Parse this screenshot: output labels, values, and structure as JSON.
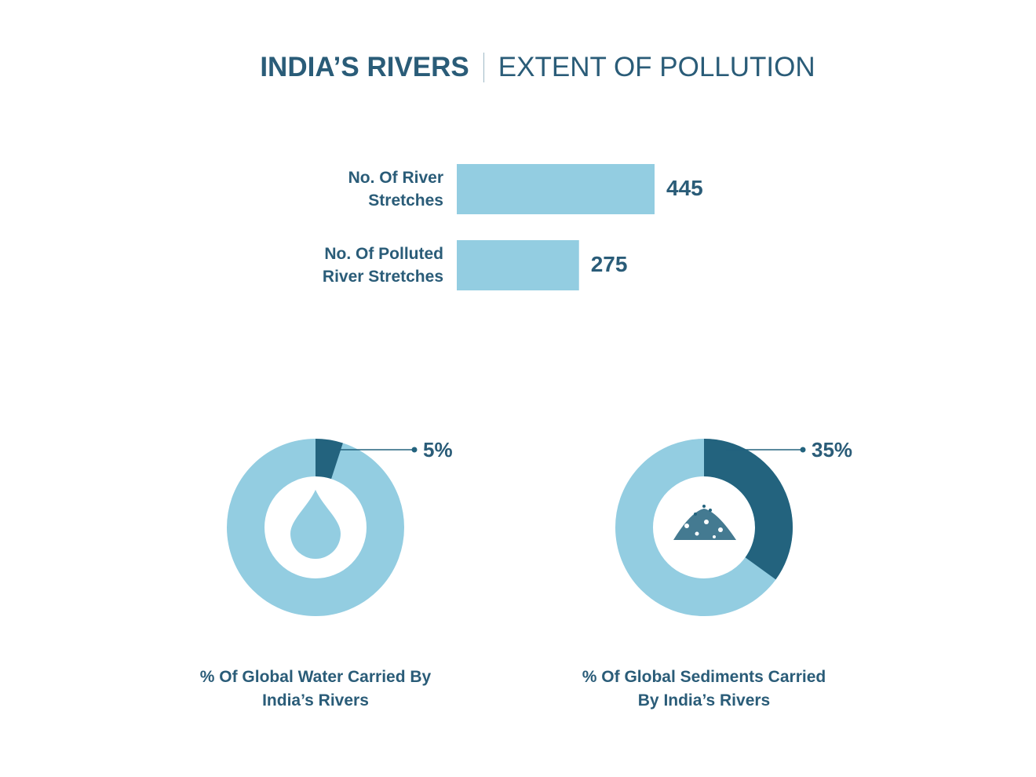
{
  "header": {
    "title": "INDIA’S RIVERS",
    "subtitle": "EXTENT OF POLLUTION"
  },
  "chart_data": [
    {
      "type": "bar",
      "orientation": "horizontal",
      "categories": [
        "No. Of River Stretches",
        "No. Of Polluted River Stretches"
      ],
      "values": [
        445,
        275
      ],
      "color": "#93cde1"
    },
    {
      "type": "pie",
      "title": "% Of Global Water Carried By India’s Rivers",
      "values": [
        5
      ],
      "value_labels": [
        "5%"
      ],
      "color": "#23637e",
      "ring_color": "#93cde1"
    },
    {
      "type": "pie",
      "title": "% Of Global Sediments Carried By India’s Rivers",
      "values": [
        35
      ],
      "value_labels": [
        "35%"
      ],
      "color": "#23637e",
      "ring_color": "#93cde1"
    }
  ]
}
